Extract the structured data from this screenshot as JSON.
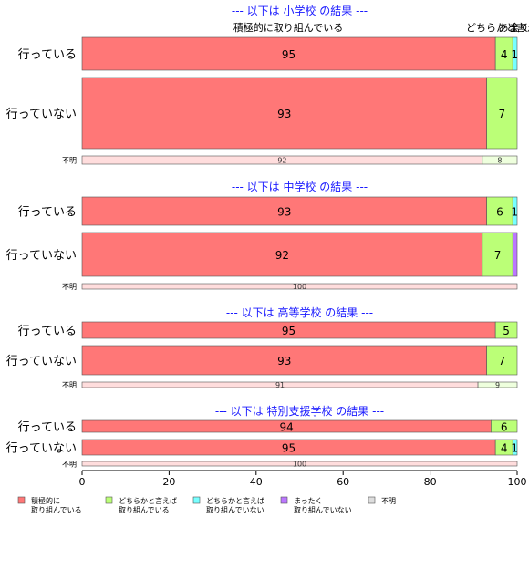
{
  "chart_data": {
    "type": "bar",
    "orientation": "horizontal",
    "stacked": true,
    "xlim": [
      0,
      100
    ],
    "xticks": [
      0,
      20,
      40,
      60,
      80,
      100
    ],
    "category_labels": [
      "積極的に取り組んでいる",
      "どちらかと言えば",
      "あまり",
      "全く"
    ],
    "legend": [
      {
        "name": "積極的に\n取り組んでいる",
        "color": "#ff7777"
      },
      {
        "name": "どちらかと言えば\n取り組んでいる",
        "color": "#bbff77"
      },
      {
        "name": "どちらかと言えば\n取り組んでいない",
        "color": "#77ffff"
      },
      {
        "name": "まったく\n取り組んでいない",
        "color": "#bb77ff"
      },
      {
        "name": "不明",
        "color": "#dddddd"
      }
    ],
    "sections": [
      {
        "title": "--- 以下は 小学校 の結果 ---",
        "rows": [
          {
            "label": "行っている",
            "values": [
              95,
              4,
              1,
              0,
              0
            ],
            "labels": [
              "95",
              "4",
              "1",
              "",
              ""
            ]
          },
          {
            "label": "行っていない",
            "values": [
              93,
              7,
              0,
              0,
              0
            ],
            "labels": [
              "93",
              "7",
              "",
              "",
              ""
            ]
          },
          {
            "label": "不明",
            "values": [
              92,
              8,
              0,
              0,
              0
            ],
            "labels": [
              "92",
              "8",
              "",
              "",
              ""
            ]
          }
        ]
      },
      {
        "title": "--- 以下は 中学校 の結果 ---",
        "rows": [
          {
            "label": "行っている",
            "values": [
              93,
              6,
              1,
              0,
              0
            ],
            "labels": [
              "93",
              "6",
              "1",
              "",
              ""
            ]
          },
          {
            "label": "行っていない",
            "values": [
              92,
              7,
              0,
              1,
              0
            ],
            "labels": [
              "92",
              "7",
              "",
              "",
              ""
            ]
          },
          {
            "label": "不明",
            "values": [
              100,
              0,
              0,
              0,
              0
            ],
            "labels": [
              "100",
              "",
              "",
              "",
              ""
            ]
          }
        ]
      },
      {
        "title": "--- 以下は 高等学校 の結果 ---",
        "rows": [
          {
            "label": "行っている",
            "values": [
              95,
              5,
              0,
              0,
              0
            ],
            "labels": [
              "95",
              "5",
              "",
              "",
              ""
            ]
          },
          {
            "label": "行っていない",
            "values": [
              93,
              7,
              0,
              0,
              0
            ],
            "labels": [
              "93",
              "7",
              "",
              "",
              ""
            ]
          },
          {
            "label": "不明",
            "values": [
              91,
              9,
              0,
              0,
              0
            ],
            "labels": [
              "91",
              "9",
              "",
              "",
              ""
            ]
          }
        ]
      },
      {
        "title": "--- 以下は 特別支援学校 の結果 ---",
        "rows": [
          {
            "label": "行っている",
            "values": [
              94,
              6,
              0,
              0,
              0
            ],
            "labels": [
              "94",
              "6",
              "",
              "",
              ""
            ]
          },
          {
            "label": "行っていない",
            "values": [
              95,
              4,
              1,
              0,
              0
            ],
            "labels": [
              "95",
              "4",
              "1",
              "",
              ""
            ]
          },
          {
            "label": "不明",
            "values": [
              100,
              0,
              0,
              0,
              0
            ],
            "labels": [
              "100",
              "",
              "",
              "",
              ""
            ]
          }
        ]
      }
    ]
  }
}
